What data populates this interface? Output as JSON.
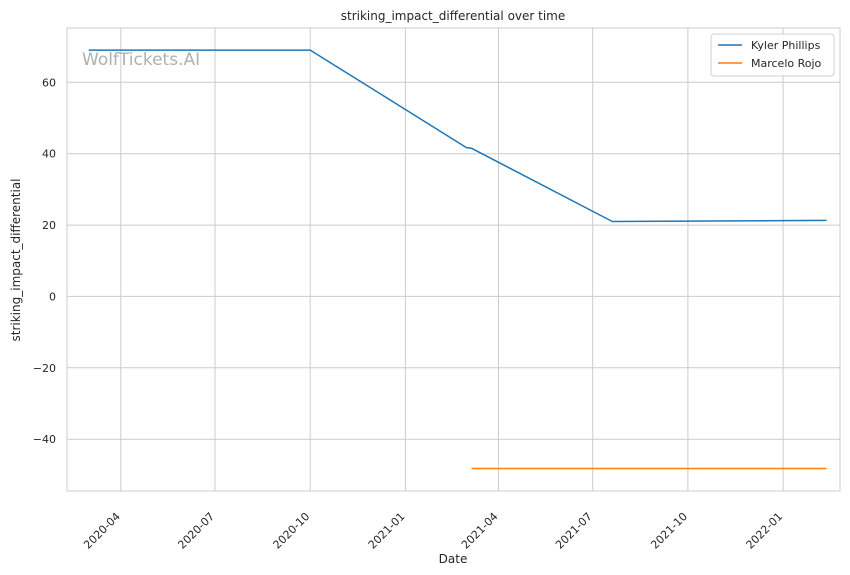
{
  "chart_data": {
    "type": "line",
    "title": "striking_impact_differential over time",
    "xlabel": "Date",
    "ylabel": "striking_impact_differential",
    "watermark": "WolfTickets.AI",
    "x_ticks": [
      "2020-04",
      "2020-07",
      "2020-10",
      "2021-01",
      "2021-04",
      "2021-07",
      "2021-10",
      "2022-01"
    ],
    "y_ticks": [
      -40,
      -20,
      0,
      20,
      40,
      60
    ],
    "y_tick_labels": [
      "−40",
      "−20",
      "0",
      "20",
      "40",
      "60"
    ],
    "xlim": [
      "2020-02-09",
      "2022-02-25"
    ],
    "ylim": [
      -54.5,
      75.2
    ],
    "grid": true,
    "legend_position": "top-right",
    "series": [
      {
        "name": "Kyler Phillips",
        "color": "#1f77b4",
        "points": [
          {
            "x": "2020-03-01",
            "y": 69
          },
          {
            "x": "2020-10-01",
            "y": 69
          },
          {
            "x": "2021-03-01",
            "y": 41.7
          },
          {
            "x": "2021-03-06",
            "y": 41.5
          },
          {
            "x": "2021-07-20",
            "y": 21.0
          },
          {
            "x": "2022-02-12",
            "y": 21.3
          }
        ]
      },
      {
        "name": "Marcelo Rojo",
        "color": "#ff7f0e",
        "points": [
          {
            "x": "2021-03-06",
            "y": -48.2
          },
          {
            "x": "2022-02-12",
            "y": -48.2
          }
        ]
      }
    ]
  }
}
